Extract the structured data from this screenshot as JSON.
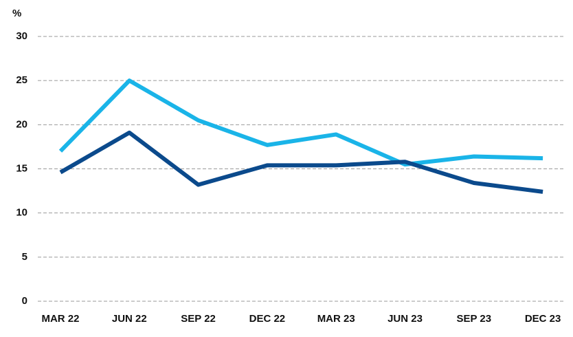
{
  "chart_data": {
    "type": "line",
    "y_label": "%",
    "categories": [
      "MAR 22",
      "JUN 22",
      "SEP 22",
      "DEC 22",
      "MAR 23",
      "JUN 23",
      "SEP 23",
      "DEC 23"
    ],
    "series": [
      {
        "color": "#1ab4e8",
        "values": [
          17.0,
          25.0,
          20.5,
          17.7,
          18.9,
          15.5,
          16.4,
          16.2
        ]
      },
      {
        "color": "#0b4a8c",
        "values": [
          14.6,
          19.1,
          13.2,
          15.4,
          15.4,
          15.8,
          13.4,
          12.4
        ]
      }
    ],
    "ylim": [
      0,
      30
    ],
    "yticks": [
      0,
      5,
      10,
      15,
      20,
      25,
      30
    ],
    "grid": true
  }
}
